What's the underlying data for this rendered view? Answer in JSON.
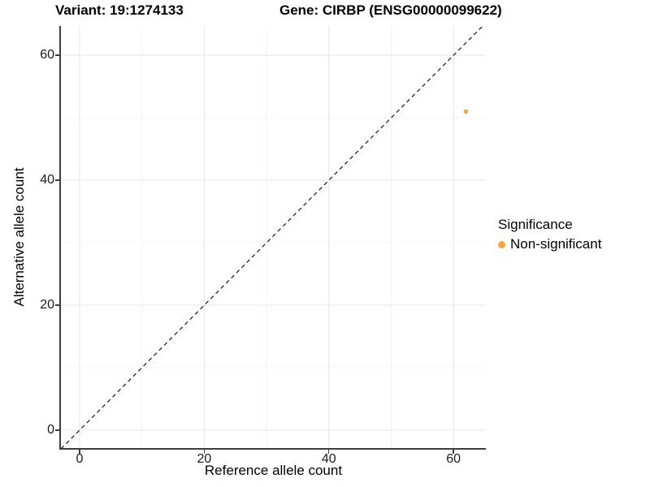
{
  "chart_data": {
    "type": "scatter",
    "titles": {
      "left": "Variant: 19:1274133",
      "right": "Gene: CIRBP (ENSG00000099622)"
    },
    "xlabel": "Reference allele count",
    "ylabel": "Alternative allele count",
    "xlim": [
      -3,
      65.2
    ],
    "ylim": [
      -3,
      64.7
    ],
    "x_ticks": [
      0,
      20,
      40,
      60
    ],
    "y_ticks": [
      0,
      20,
      40,
      60
    ],
    "x_minor_gridlines": [
      10,
      30,
      50
    ],
    "y_minor_gridlines": [
      10,
      30,
      50
    ],
    "grid": true,
    "identity_line": {
      "slope": 1,
      "intercept": 0,
      "style": "dashed",
      "color": "#111111"
    },
    "series": [
      {
        "name": "Non-significant",
        "color": "#F9A43C",
        "points": [
          {
            "x": 62,
            "y": 51
          }
        ]
      }
    ],
    "legend": {
      "title": "Significance",
      "position": "right",
      "items": [
        {
          "label": "Non-significant",
          "color": "#F9A43C"
        }
      ]
    },
    "colors": {
      "axis": "#3d3d3d",
      "grid_major": "#e9e9e9",
      "grid_minor": "#f4f4f4",
      "point_non_significant": "#F9A43C"
    }
  }
}
